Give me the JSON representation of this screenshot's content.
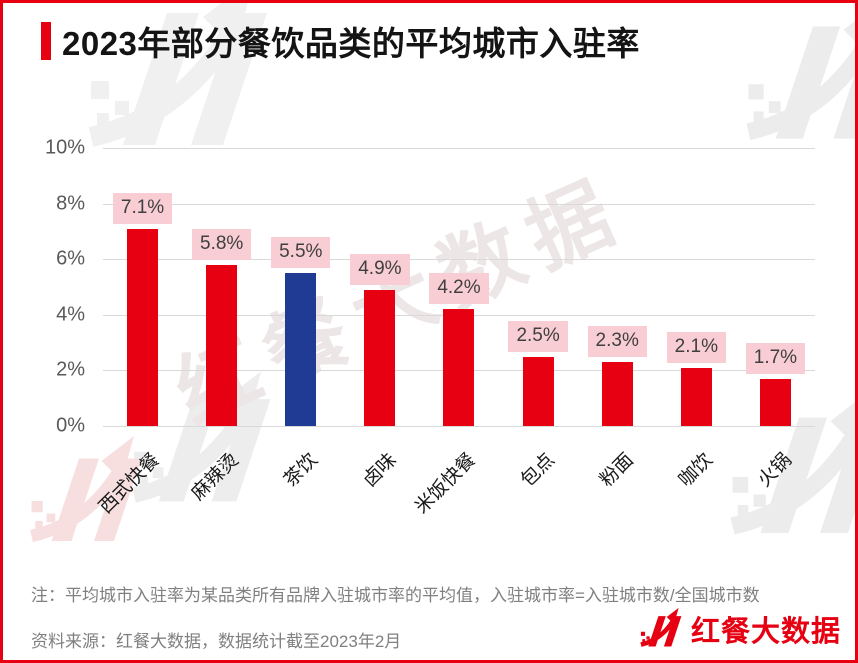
{
  "header": {
    "title": "2023年部分餐饮品类的平均城市入驻率"
  },
  "chart_data": {
    "type": "bar",
    "title": "2023年部分餐饮品类的平均城市入驻率",
    "categories": [
      "西式快餐",
      "麻辣烫",
      "茶饮",
      "卤味",
      "米饭快餐",
      "包点",
      "粉面",
      "咖饮",
      "火锅"
    ],
    "values": [
      7.1,
      5.8,
      5.5,
      4.9,
      4.2,
      2.5,
      2.3,
      2.1,
      1.7
    ],
    "value_labels": [
      "7.1%",
      "5.8%",
      "5.5%",
      "4.9%",
      "4.2%",
      "2.5%",
      "2.3%",
      "2.1%",
      "1.7%"
    ],
    "bar_colors": [
      "#e60012",
      "#e60012",
      "#1f3b94",
      "#e60012",
      "#e60012",
      "#e60012",
      "#e60012",
      "#e60012",
      "#e60012"
    ],
    "highlighted_category": "茶饮",
    "xlabel": "",
    "ylabel": "",
    "ylim": [
      0,
      10
    ],
    "y_tick_step": 2,
    "y_tick_labels": [
      "0%",
      "2%",
      "4%",
      "6%",
      "8%",
      "10%"
    ],
    "grid": true,
    "legend": false,
    "value_label_bg": "#f8cdd3",
    "value_label_text_color": "#3f3f3f"
  },
  "footer": {
    "note": "注：平均城市入驻率为某品类所有品牌入驻城市率的平均值，入驻城市率=入驻城市数/全国城市数",
    "source": "资料来源：红餐大数据，数据统计截至2023年2月",
    "brand": "红餐大数据"
  },
  "watermark": {
    "text": "红餐大数据"
  },
  "colors": {
    "accent_red": "#e60012",
    "bar_red": "#e60012",
    "bar_blue": "#1f3b94",
    "label_pink": "#f8cdd3",
    "gridline": "#d9d9d9",
    "axis_text": "#595959",
    "note_text": "#808080"
  }
}
